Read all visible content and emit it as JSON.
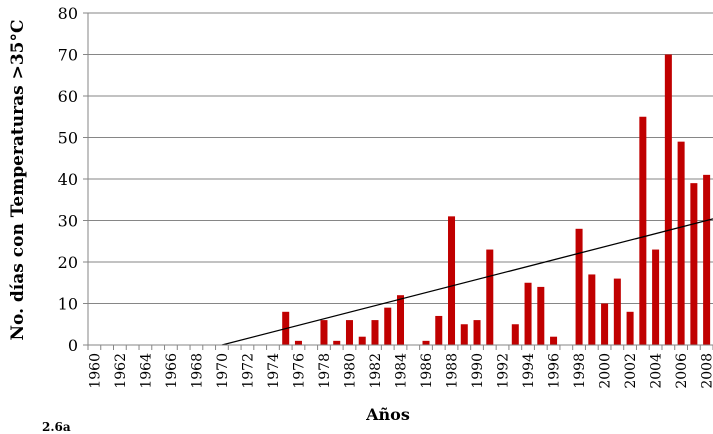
{
  "chart_data": {
    "type": "bar",
    "title": "",
    "xlabel": "Años",
    "ylabel": "No. días con Temperaturas >35°C",
    "ylim": [
      0,
      80
    ],
    "yticks": [
      0,
      10,
      20,
      30,
      40,
      50,
      60,
      70,
      80
    ],
    "grid": true,
    "x_tick_labels": [
      "1960",
      "1962",
      "1964",
      "1966",
      "1968",
      "1970",
      "1972",
      "1974",
      "1976",
      "1978",
      "1980",
      "1982",
      "1984",
      "1986",
      "1988",
      "1990",
      "1992",
      "1994",
      "1996",
      "1998",
      "2000",
      "2002",
      "2004",
      "2006",
      "2008"
    ],
    "series": [
      {
        "x": [
          1960,
          1961,
          1962,
          1963,
          1964,
          1965,
          1966,
          1967,
          1968,
          1969,
          1970,
          1971,
          1972,
          1973,
          1974,
          1975,
          1976,
          1977,
          1978,
          1979,
          1980,
          1981,
          1982,
          1983,
          1984,
          1985,
          1986,
          1987,
          1988,
          1989,
          1990,
          1991,
          1992,
          1993,
          1994,
          1995,
          1996,
          1997,
          1998,
          1999,
          2000,
          2001,
          2002,
          2003,
          2004,
          2005,
          2006,
          2007,
          2008
        ],
        "values": [
          0,
          0,
          0,
          0,
          0,
          0,
          0,
          0,
          0,
          0,
          0,
          0,
          0,
          0,
          0,
          8,
          1,
          0,
          6,
          1,
          6,
          2,
          6,
          9,
          12,
          0,
          1,
          7,
          31,
          5,
          6,
          23,
          0,
          5,
          15,
          14,
          2,
          0,
          28,
          17,
          10,
          16,
          8,
          55,
          23,
          70,
          49,
          39,
          41
        ],
        "color": "#c00000"
      }
    ],
    "trendline": {
      "type": "linear",
      "x": [
        1970,
        2008
      ],
      "y": [
        0,
        30
      ],
      "color": "#000000"
    }
  },
  "footnote": "2.6a"
}
